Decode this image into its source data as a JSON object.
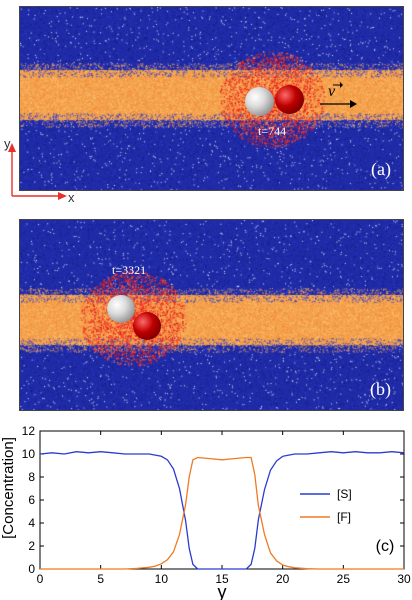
{
  "panel_a": {
    "label": "(a)",
    "time_label": "t=744",
    "velocity_label": "v"
  },
  "panel_b": {
    "label": "(b)",
    "time_label": "t=3321"
  },
  "axis_indicator": {
    "y_label": "y",
    "x_label": "x"
  },
  "chart_data": {
    "type": "line",
    "panel_label": "(c)",
    "xlabel": "y",
    "ylabel": "[Concentration]",
    "xlim": [
      0,
      30
    ],
    "ylim": [
      0,
      12
    ],
    "xticks": [
      0,
      5,
      10,
      15,
      20,
      25,
      30
    ],
    "yticks": [
      0,
      2,
      4,
      6,
      8,
      10,
      12
    ],
    "legend_position": "right",
    "series": [
      {
        "name": "[S]",
        "color": "#2a3bd1",
        "x": [
          0,
          1,
          2,
          3,
          4,
          5,
          6,
          7,
          8,
          9,
          9.5,
          10,
          10.5,
          11,
          11.5,
          12,
          12.3,
          12.6,
          13,
          14,
          15,
          16,
          17,
          17.4,
          17.7,
          18,
          18.5,
          19,
          19.5,
          20,
          20.5,
          21,
          22,
          23,
          24,
          25,
          26,
          27,
          28,
          29,
          30
        ],
        "values": [
          10.0,
          10.1,
          10.0,
          10.2,
          10.1,
          10.2,
          10.1,
          10.0,
          10.0,
          10.0,
          9.9,
          9.8,
          9.5,
          8.7,
          7.0,
          4.2,
          1.8,
          0.4,
          0.0,
          0.0,
          0.0,
          0.0,
          0.0,
          0.4,
          1.8,
          4.3,
          6.9,
          8.6,
          9.4,
          9.8,
          9.9,
          10.0,
          10.0,
          10.1,
          10.2,
          10.1,
          10.2,
          10.1,
          10.1,
          10.2,
          10.1
        ]
      },
      {
        "name": "[F]",
        "color": "#ef7a22",
        "x": [
          0,
          5,
          7,
          8,
          9,
          9.5,
          10,
          10.5,
          11,
          11.5,
          12,
          12.3,
          12.6,
          13,
          14,
          15,
          16,
          17,
          17.4,
          17.7,
          18,
          18.5,
          19,
          19.5,
          20,
          20.5,
          21,
          22,
          23,
          25,
          30
        ],
        "values": [
          0,
          0,
          0,
          0.05,
          0.15,
          0.25,
          0.45,
          0.8,
          1.5,
          3.0,
          5.6,
          8.0,
          9.5,
          9.7,
          9.6,
          9.5,
          9.6,
          9.7,
          9.7,
          8.2,
          5.5,
          3.0,
          1.4,
          0.7,
          0.35,
          0.2,
          0.1,
          0.03,
          0,
          0,
          0
        ]
      }
    ]
  }
}
